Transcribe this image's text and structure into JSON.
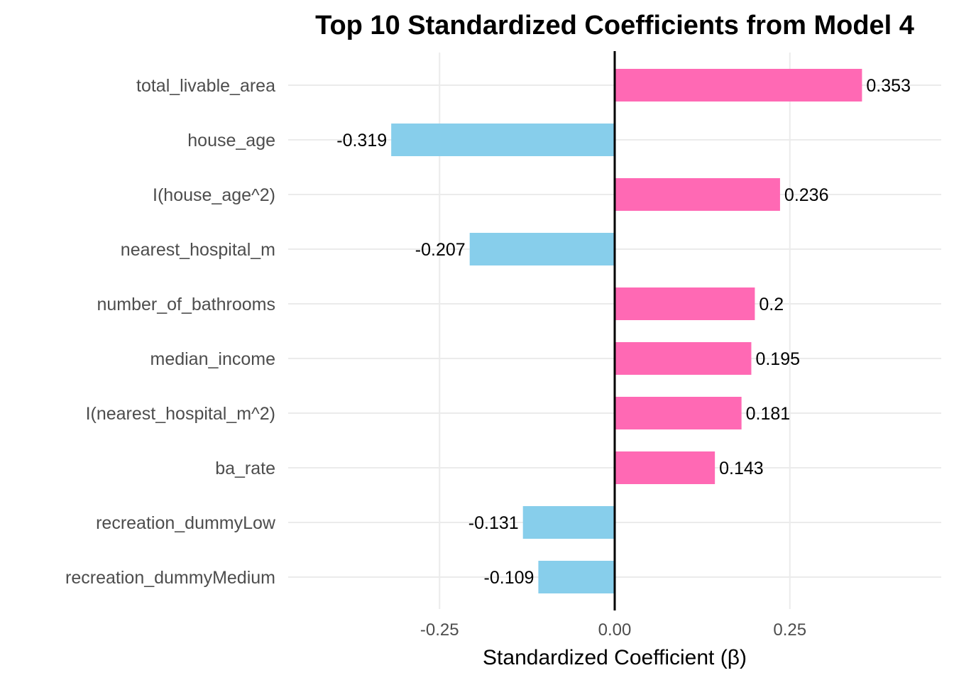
{
  "chart_data": {
    "type": "bar",
    "orientation": "horizontal",
    "title": "Top 10 Standardized Coefficients from Model 4",
    "xlabel": "Standardized Coefficient (β)",
    "ylabel": "",
    "xlim": [
      -0.4,
      0.4
    ],
    "x_ticks": [
      -0.25,
      0.0,
      0.25
    ],
    "x_tick_labels": [
      "-0.25",
      "0.00",
      "0.25"
    ],
    "categories": [
      "total_livable_area",
      "house_age",
      "I(house_age^2)",
      "nearest_hospital_m",
      "number_of_bathrooms",
      "median_income",
      "I(nearest_hospital_m^2)",
      "ba_rate",
      "recreation_dummyLow",
      "recreation_dummyMedium"
    ],
    "values": [
      0.353,
      -0.319,
      0.236,
      -0.207,
      0.2,
      0.195,
      0.181,
      0.143,
      -0.131,
      -0.109
    ],
    "value_labels": [
      "0.353",
      "-0.319",
      "0.236",
      "-0.207",
      "0.2",
      "0.195",
      "0.181",
      "0.143",
      "-0.131",
      "-0.109"
    ],
    "colors": {
      "positive": "#ff69b4",
      "negative": "#87ceeb",
      "zero_line": "#000000",
      "grid": "#ebebeb"
    },
    "grid": true,
    "legend": "none"
  }
}
